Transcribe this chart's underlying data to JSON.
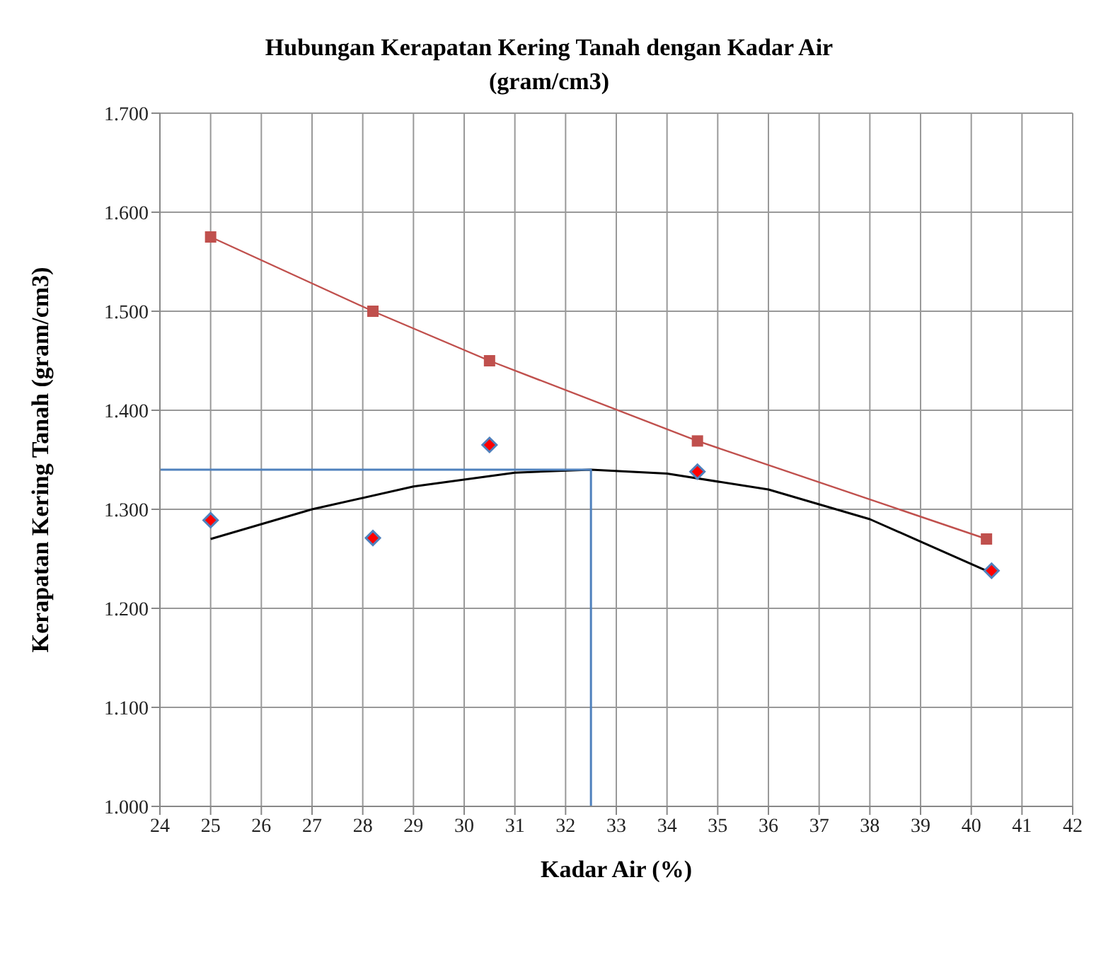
{
  "chart_data": {
    "type": "line",
    "title": "Hubungan Kerapatan Kering Tanah dengan Kadar Air",
    "subtitle": "(gram/cm3)",
    "xlabel": "Kadar Air (%)",
    "ylabel": "Kerapatan Kering Tanah (gram/cm3)",
    "xlim": [
      24,
      42
    ],
    "xticks": [
      24,
      25,
      26,
      27,
      28,
      29,
      30,
      31,
      32,
      33,
      34,
      35,
      36,
      37,
      38,
      39,
      40,
      41,
      42
    ],
    "ylim": [
      1.0,
      1.7
    ],
    "yticks": [
      {
        "value": 1.0,
        "label": "1.000"
      },
      {
        "value": 1.1,
        "label": "1.100"
      },
      {
        "value": 1.2,
        "label": "1.200"
      },
      {
        "value": 1.3,
        "label": "1.300"
      },
      {
        "value": 1.4,
        "label": "1.400"
      },
      {
        "value": 1.5,
        "label": "1.500"
      },
      {
        "value": 1.6,
        "label": "1.600"
      },
      {
        "value": 1.7,
        "label": "1.700"
      }
    ],
    "grid": true,
    "series": [
      {
        "marker": "square",
        "color": "#c0504d",
        "x": [
          25,
          28.2,
          30.5,
          34.6,
          40.3
        ],
        "values": [
          1.575,
          1.5,
          1.45,
          1.369,
          1.27
        ]
      },
      {
        "type": "scatter",
        "marker": "diamond",
        "color": "#ff0000",
        "x": [
          25,
          28.2,
          30.5,
          34.6,
          40.4
        ],
        "values": [
          1.289,
          1.271,
          1.365,
          1.338,
          1.238
        ]
      },
      {
        "type": "line",
        "marker": "none",
        "color": "#000000",
        "x": [
          25,
          27,
          29,
          31,
          32.5,
          34,
          36,
          38,
          40.3
        ],
        "values": [
          1.27,
          1.3,
          1.323,
          1.337,
          1.34,
          1.336,
          1.32,
          1.29,
          1.238
        ]
      },
      {
        "type": "line",
        "marker": "none",
        "color": "#4f81bd",
        "x": [
          24,
          32.5,
          32.5
        ],
        "values": [
          1.34,
          1.34,
          1.0
        ]
      }
    ]
  }
}
